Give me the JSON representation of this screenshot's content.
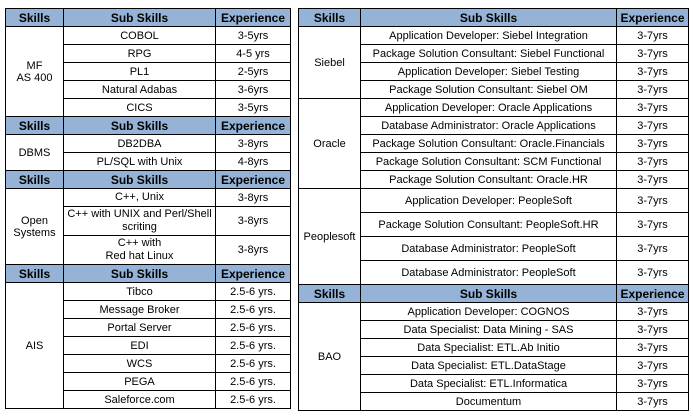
{
  "colors": {
    "header_bg": "#95B3D7",
    "border": "#000000",
    "text": "#000000",
    "page_bg": "#FFFFFF"
  },
  "header_labels": {
    "skills": "Skills",
    "sub_skills": "Sub Skills",
    "experience": "Experience"
  },
  "tables": [
    {
      "name": "left",
      "blocks": [
        {
          "type": "header"
        },
        {
          "type": "section",
          "skill": "MF\nAS 400",
          "rows": [
            {
              "sub": "COBOL",
              "exp": "3-5yrs"
            },
            {
              "sub": "RPG",
              "exp": "4-5 yrs"
            },
            {
              "sub": "PL1",
              "exp": "2-5yrs"
            },
            {
              "sub": "Natural Adabas",
              "exp": "3-6yrs"
            },
            {
              "sub": "CICS",
              "exp": "3-5yrs"
            }
          ]
        },
        {
          "type": "header"
        },
        {
          "type": "section",
          "skill": "DBMS",
          "rows": [
            {
              "sub": "DB2DBA",
              "exp": "3-8yrs"
            },
            {
              "sub": "PL/SQL with Unix",
              "exp": "4-8yrs"
            }
          ]
        },
        {
          "type": "header"
        },
        {
          "type": "section",
          "skill": "Open\nSystems",
          "rows": [
            {
              "sub": "C++, Unix",
              "exp": "3-8yrs"
            },
            {
              "sub": "C++ with UNIX and Perl/Shell scriting",
              "exp": "3-8yrs"
            },
            {
              "sub": "C++ with\nRed hat Linux",
              "exp": "3-8yrs"
            }
          ]
        },
        {
          "type": "header"
        },
        {
          "type": "section",
          "skill": "AIS",
          "rows": [
            {
              "sub": "Tibco",
              "exp": "2.5-6 yrs."
            },
            {
              "sub": "Message Broker",
              "exp": "2.5-6 yrs."
            },
            {
              "sub": "Portal Server",
              "exp": "2.5-6 yrs."
            },
            {
              "sub": "EDI",
              "exp": "2.5-6 yrs."
            },
            {
              "sub": "WCS",
              "exp": "2.5-6 yrs."
            },
            {
              "sub": "PEGA",
              "exp": "2.5-6 yrs."
            },
            {
              "sub": "Saleforce.com",
              "exp": "2.5-6 yrs."
            }
          ]
        }
      ]
    },
    {
      "name": "right",
      "blocks": [
        {
          "type": "header"
        },
        {
          "type": "section",
          "skill": "Siebel",
          "rows": [
            {
              "sub": "Application Developer: Siebel Integration",
              "exp": "3-7yrs"
            },
            {
              "sub": "Package Solution Consultant: Siebel Functional",
              "exp": "3-7yrs"
            },
            {
              "sub": "Application Developer: Siebel Testing",
              "exp": "3-7yrs"
            },
            {
              "sub": "Package Solution Consultant: Siebel OM",
              "exp": "3-7yrs"
            }
          ]
        },
        {
          "type": "section",
          "skill": "Oracle",
          "rows": [
            {
              "sub": "Application Developer: Oracle Applications",
              "exp": "3-7yrs"
            },
            {
              "sub": "Database Administrator: Oracle Applications",
              "exp": "3-7yrs"
            },
            {
              "sub": "Package Solution Consultant: Oracle.Financials",
              "exp": "3-7yrs"
            },
            {
              "sub": "Package Solution Consultant: SCM Functional",
              "exp": "3-7yrs"
            },
            {
              "sub": "Package Solution Consultant: Oracle.HR",
              "exp": "3-7yrs"
            }
          ]
        },
        {
          "type": "section",
          "skill": "Peoplesoft",
          "rows": [
            {
              "sub": "Application Developer: PeopleSoft",
              "exp": "3-7yrs"
            },
            {
              "sub": "Package Solution Consultant: PeopleSoft.HR",
              "exp": "3-7yrs"
            },
            {
              "sub": "Database Administrator: PeopleSoft",
              "exp": "3-7yrs"
            },
            {
              "sub": "Database Administrator: PeopleSoft",
              "exp": "3-7yrs"
            }
          ]
        },
        {
          "type": "header"
        },
        {
          "type": "section",
          "skill": "BAO",
          "rows": [
            {
              "sub": "Application Developer: COGNOS",
              "exp": "3-7yrs"
            },
            {
              "sub": "Data Specialist: Data Mining - SAS",
              "exp": "3-7yrs"
            },
            {
              "sub": "Data Specialist: ETL.Ab Initio",
              "exp": "3-7yrs"
            },
            {
              "sub": "Data Specialist: ETL.DataStage",
              "exp": "3-7yrs"
            },
            {
              "sub": "Data Specialist: ETL.Informatica",
              "exp": "3-7yrs"
            },
            {
              "sub": "Documentum",
              "exp": "3-7yrs"
            }
          ]
        }
      ]
    }
  ]
}
